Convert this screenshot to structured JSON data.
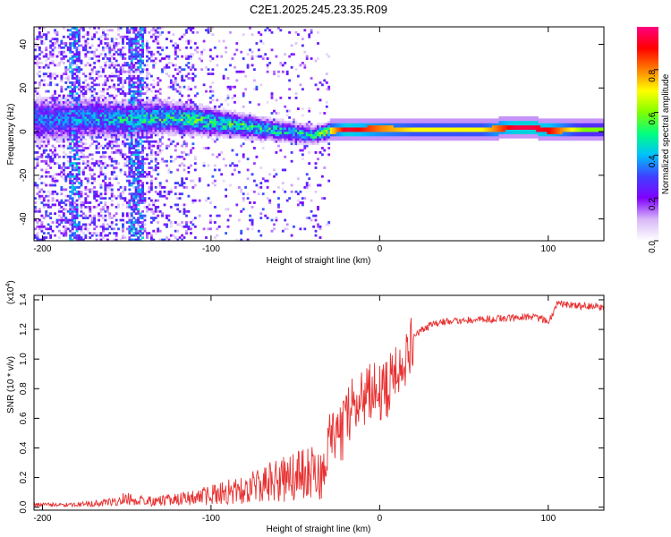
{
  "figure_title": "C2E1.2025.245.23.35.R09",
  "chart_data": [
    {
      "type": "heatmap",
      "title": "C2E1.2025.245.23.35.R09",
      "xlabel": "Height of straight line (km)",
      "ylabel": "Frequency (Hz)",
      "xlim": [
        -205,
        133
      ],
      "ylim": [
        -50,
        48
      ],
      "x_ticks": [
        -200,
        -100,
        0,
        100
      ],
      "y_ticks": [
        -40,
        -20,
        0,
        20,
        40
      ],
      "colorbar": {
        "label": "Normalized spectral amplitude",
        "range": [
          0,
          1
        ],
        "ticks": [
          0.0,
          0.2,
          0.4,
          0.6,
          0.8
        ],
        "colors": [
          "#ffffff",
          "#d8b8f8",
          "#8000ff",
          "#4040ff",
          "#00c0ff",
          "#00ff80",
          "#80ff00",
          "#ffff00",
          "#ff8000",
          "#ff0000",
          "#ff0080"
        ]
      },
      "ridge": {
        "description": "dominant frequency band vs height",
        "x": [
          -190,
          -170,
          -150,
          -130,
          -110,
          -90,
          -70,
          -50,
          -40,
          -30,
          -20,
          0,
          20,
          40,
          60,
          80,
          90,
          100,
          120,
          133
        ],
        "center_hz": [
          5,
          6,
          5,
          6,
          5,
          3,
          1,
          -1,
          -2,
          0,
          0.5,
          1,
          0.5,
          0.5,
          0.5,
          1.5,
          1.5,
          0,
          0.5,
          0.5
        ],
        "amplitude": [
          0.35,
          0.4,
          0.45,
          0.5,
          0.55,
          0.5,
          0.5,
          0.45,
          0.5,
          0.7,
          0.95,
          0.8,
          0.7,
          0.7,
          0.7,
          0.95,
          0.95,
          0.9,
          0.6,
          0.6
        ]
      }
    },
    {
      "type": "line",
      "title": "",
      "xlabel": "Height of straight line (km)",
      "ylabel": "SNR (10 * v/v)",
      "y_scale_label": "(x10",
      "y_scale_exp": "4",
      "xlim": [
        -205,
        133
      ],
      "ylim": [
        -0.02,
        1.43
      ],
      "x_ticks": [
        -200,
        -100,
        0,
        100
      ],
      "y_ticks": [
        0.0,
        0.2,
        0.4,
        0.6,
        0.8,
        1.0,
        1.2,
        1.4
      ],
      "color": "#e83030",
      "series": [
        {
          "name": "SNR",
          "x": [
            -205,
            -180,
            -160,
            -150,
            -140,
            -120,
            -100,
            -80,
            -60,
            -50,
            -40,
            -35,
            -30,
            -25,
            -20,
            -15,
            -10,
            -5,
            0,
            5,
            10,
            15,
            20,
            25,
            30,
            40,
            60,
            80,
            90,
            100,
            103,
            105,
            110,
            120,
            133
          ],
          "y": [
            0.02,
            0.02,
            0.04,
            0.07,
            0.05,
            0.06,
            0.1,
            0.15,
            0.22,
            0.26,
            0.3,
            0.25,
            0.45,
            0.45,
            0.62,
            0.72,
            0.78,
            0.8,
            0.82,
            0.85,
            0.92,
            1.05,
            1.15,
            1.2,
            1.23,
            1.26,
            1.27,
            1.28,
            1.29,
            1.26,
            1.3,
            1.38,
            1.37,
            1.36,
            1.35
          ]
        }
      ]
    }
  ]
}
